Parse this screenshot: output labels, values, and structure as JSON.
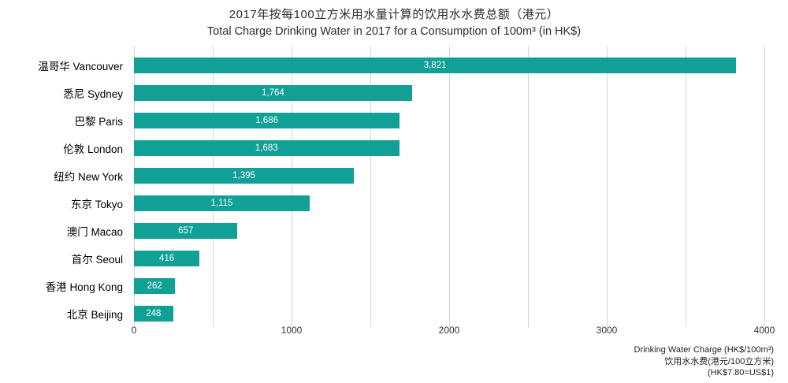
{
  "title": {
    "zh": "2017年按每100立方米用水量计算的饮用水水费总额（港元）",
    "en": "Total Charge Drinking Water in 2017 for a Consumption of 100m³ (in HK$)"
  },
  "chart_data": {
    "type": "bar",
    "orientation": "horizontal",
    "categories": [
      "温哥华 Vancouver",
      "悉尼 Sydney",
      "巴黎 Paris",
      "伦敦 London",
      "纽约 New York",
      "东京 Tokyo",
      "澳门 Macao",
      "首尔 Seoul",
      "香港 Hong Kong",
      "北京 Beijing"
    ],
    "values": [
      3821,
      1764,
      1686,
      1683,
      1395,
      1115,
      657,
      416,
      262,
      248
    ],
    "value_labels": [
      "3,821",
      "1,764",
      "1,686",
      "1,683",
      "1,395",
      "1,115",
      "657",
      "416",
      "262",
      "248"
    ],
    "xlim": [
      0,
      4000
    ],
    "x_ticks": [
      0,
      1000,
      2000,
      3000,
      4000
    ],
    "gridline_interval": 500,
    "grid": true,
    "legend": "none",
    "bar_color": "#10a096",
    "value_label_color": "#ffffff",
    "xlabel_lines": [
      "Drinking Water Charge (HK$/100m³)",
      "饮用水水费(港元/100立方米)",
      "(HK$7.80=US$1)"
    ]
  }
}
